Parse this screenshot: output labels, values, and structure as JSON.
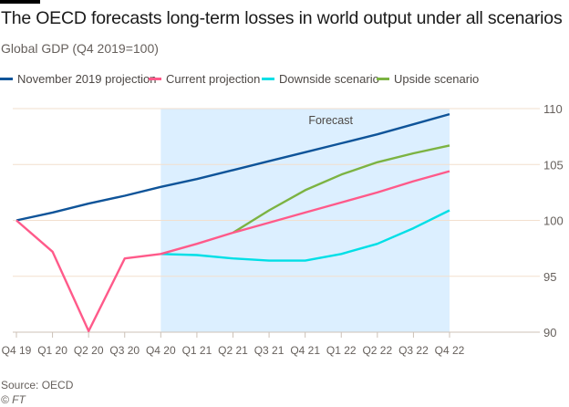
{
  "header": {
    "title": "The OECD forecasts long-term losses in world output under all scenarios",
    "subtitle": "Global GDP (Q4 2019=100)"
  },
  "footer": {
    "source": "Source: OECD",
    "copyright": "© FT"
  },
  "chart_data": {
    "type": "line",
    "title": "The OECD forecasts long-term losses in world output under all scenarios",
    "ylabel": "Global GDP (Q4 2019=100)",
    "categories": [
      "Q4 19",
      "Q1 20",
      "Q2 20",
      "Q3 20",
      "Q4 20",
      "Q1 21",
      "Q2 21",
      "Q3 21",
      "Q4 21",
      "Q1 22",
      "Q2 22",
      "Q3 22",
      "Q4 22"
    ],
    "ylim": [
      90,
      110
    ],
    "yticks": [
      90,
      95,
      100,
      105,
      110
    ],
    "grid": true,
    "legend_position": "top",
    "annotation": {
      "label": "Forecast",
      "from": "Q4 20",
      "to": "Q4 22",
      "color": "#dcefff"
    },
    "series": [
      {
        "name": "November 2019 projection",
        "color": "#0f5499",
        "values": [
          100,
          100.7,
          101.5,
          102.2,
          103.0,
          103.7,
          104.5,
          105.3,
          106.1,
          106.9,
          107.7,
          108.6,
          109.5
        ]
      },
      {
        "name": "Current projection",
        "color": "#ff5a8a",
        "values": [
          100,
          97.2,
          90.1,
          96.6,
          97.0,
          97.9,
          98.9,
          99.8,
          100.7,
          101.6,
          102.5,
          103.5,
          104.4
        ]
      },
      {
        "name": "Downside scenario",
        "color": "#00dfe6",
        "values": [
          null,
          null,
          null,
          null,
          97.0,
          96.9,
          96.6,
          96.4,
          96.4,
          97.0,
          97.9,
          99.3,
          100.9
        ]
      },
      {
        "name": "Upside scenario",
        "color": "#7cb342",
        "values": [
          null,
          null,
          null,
          null,
          null,
          null,
          98.9,
          100.9,
          102.7,
          104.1,
          105.2,
          106.0,
          106.7
        ]
      }
    ]
  }
}
